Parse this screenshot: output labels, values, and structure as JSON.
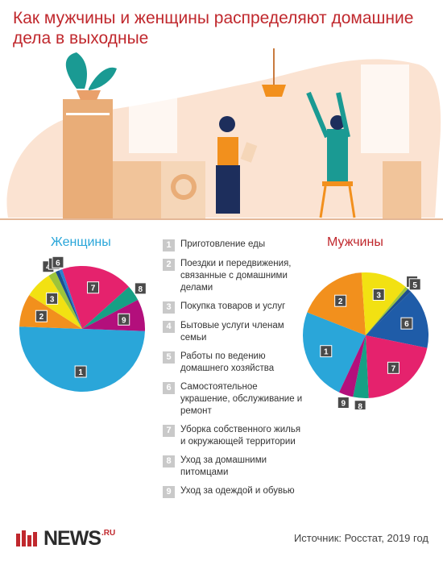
{
  "title": "Как мужчины и женщины распределяют домашние дела в выходные",
  "chart_data": [
    {
      "type": "pie",
      "title": "Женщины",
      "labels": [
        "1",
        "2",
        "3",
        "4",
        "5",
        "6",
        "7",
        "8",
        "9"
      ],
      "values": [
        50.0,
        8.5,
        7.0,
        2.0,
        1.0,
        0.8,
        18.5,
        4.0,
        8.2
      ],
      "colors": [
        "#2aa6d9",
        "#f2901d",
        "#f2e112",
        "#9cc43a",
        "#1d4f8e",
        "#2b7fd0",
        "#e5226d",
        "#16a085",
        "#b30f7c"
      ]
    },
    {
      "type": "pie",
      "title": "Мужчины",
      "labels": [
        "1",
        "2",
        "3",
        "4",
        "5",
        "6",
        "7",
        "8",
        "9"
      ],
      "values": [
        24.0,
        18.0,
        12.0,
        0.8,
        1.0,
        15.5,
        21.0,
        4.0,
        3.7
      ],
      "colors": [
        "#2aa6d9",
        "#f2901d",
        "#f2e112",
        "#9cc43a",
        "#1d4f8e",
        "#1f5ca8",
        "#e5226d",
        "#16a085",
        "#b30f7c"
      ]
    }
  ],
  "legend": [
    {
      "num": "1",
      "text": "Приготовление еды"
    },
    {
      "num": "2",
      "text": "Поездки и передвижения, связанные с домашними делами"
    },
    {
      "num": "3",
      "text": "Покупка товаров и услуг"
    },
    {
      "num": "4",
      "text": "Бытовые услуги членам семьи"
    },
    {
      "num": "5",
      "text": "Работы по ведению домашнего хозяйства"
    },
    {
      "num": "6",
      "text": "Самостоятельное украшение, обслуживание и ремонт"
    },
    {
      "num": "7",
      "text": "Уборка собственного жилья и окружающей территории"
    },
    {
      "num": "8",
      "text": "Уход за домашними питомцами"
    },
    {
      "num": "9",
      "text": "Уход за одеждой и обувью"
    }
  ],
  "logo": {
    "word": "NEWS",
    "suffix": ".RU"
  },
  "source": "Источник: Росстат, 2019 год"
}
